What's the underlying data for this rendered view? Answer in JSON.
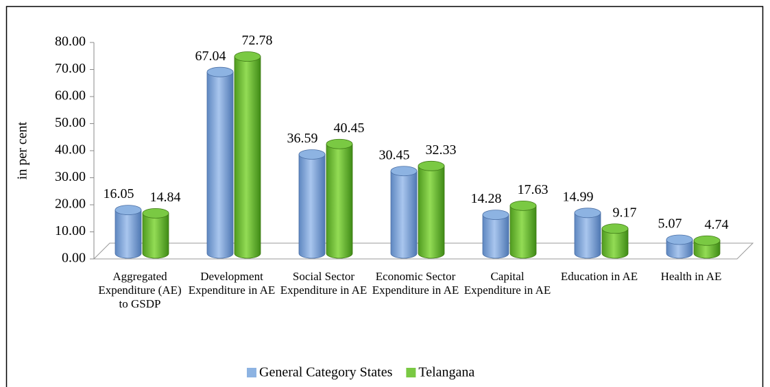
{
  "chart_data": {
    "type": "bar3d",
    "y_label": "in per cent",
    "categories": [
      "Aggregated Expenditure (AE) to GSDP",
      "Development Expenditure in AE",
      "Social Sector Expenditure in AE",
      "Economic Sector Expenditure in AE",
      "Capital Expenditure in AE",
      "Education in AE",
      "Health in AE"
    ],
    "series": [
      {
        "name": "General Category States",
        "color": "#8db3e2",
        "values": [
          16.05,
          67.04,
          36.59,
          30.45,
          14.28,
          14.99,
          5.07
        ]
      },
      {
        "name": "Telangana",
        "color": "#7ac943",
        "values": [
          14.84,
          72.78,
          40.45,
          32.33,
          17.63,
          9.17,
          4.74
        ]
      }
    ],
    "ylim": [
      0,
      80
    ],
    "yticks": [
      {
        "value": 0,
        "label": "0.00"
      },
      {
        "value": 10,
        "label": "10.00"
      },
      {
        "value": 20,
        "label": "20.00"
      },
      {
        "value": 30,
        "label": "30.00"
      },
      {
        "value": 40,
        "label": "40.00"
      },
      {
        "value": 50,
        "label": "50.00"
      },
      {
        "value": 60,
        "label": "60.00"
      },
      {
        "value": 70,
        "label": "70.00"
      },
      {
        "value": 80,
        "label": "80.00"
      }
    ],
    "legend": "bottom"
  }
}
